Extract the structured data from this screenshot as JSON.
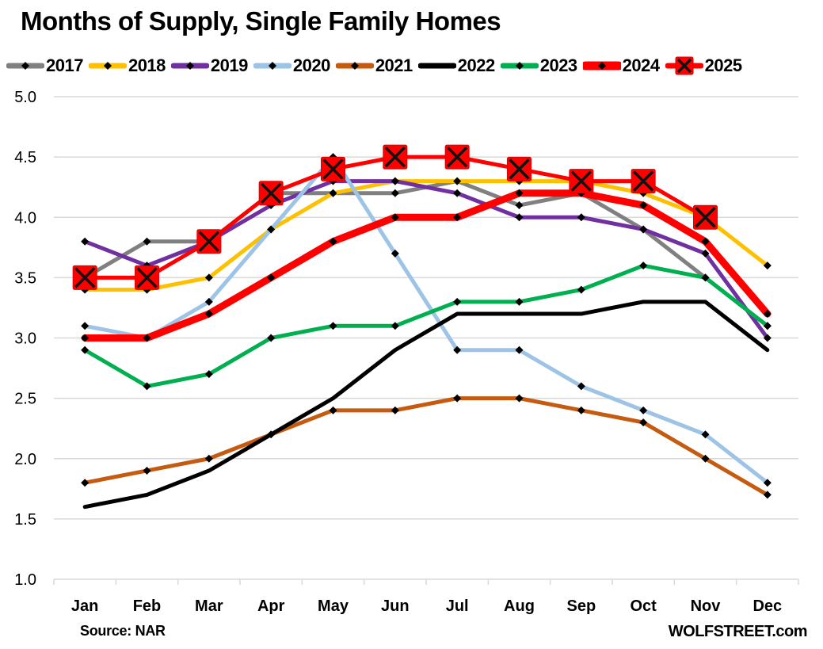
{
  "chart_data": {
    "type": "line",
    "title": "Months of Supply, Single Family Homes",
    "xlabel": "",
    "ylabel": "",
    "categories": [
      "Jan",
      "Feb",
      "Mar",
      "Apr",
      "May",
      "Jun",
      "Jul",
      "Aug",
      "Sep",
      "Oct",
      "Nov",
      "Dec"
    ],
    "yticks": [
      "1.0",
      "1.5",
      "2.0",
      "2.5",
      "3.0",
      "3.5",
      "4.0",
      "4.5",
      "5.0"
    ],
    "ylim": [
      1.0,
      5.0
    ],
    "grid": true,
    "legend_position": "top",
    "series": [
      {
        "name": "2017",
        "color": "#808080",
        "marker": "diamond",
        "values": [
          3.5,
          3.8,
          3.8,
          4.2,
          4.2,
          4.2,
          4.3,
          4.1,
          4.2,
          3.9,
          3.5,
          3.1
        ]
      },
      {
        "name": "2018",
        "color": "#FFC000",
        "marker": "diamond",
        "values": [
          3.4,
          3.4,
          3.5,
          3.9,
          4.2,
          4.3,
          4.3,
          4.3,
          4.3,
          4.2,
          4.0,
          3.6
        ]
      },
      {
        "name": "2019",
        "color": "#7030A0",
        "marker": "diamond",
        "values": [
          3.8,
          3.6,
          3.8,
          4.1,
          4.3,
          4.3,
          4.2,
          4.0,
          4.0,
          3.9,
          3.7,
          3.0
        ]
      },
      {
        "name": "2020",
        "color": "#9DC3E6",
        "marker": "diamond",
        "values": [
          3.1,
          3.0,
          3.3,
          3.9,
          4.5,
          3.7,
          2.9,
          2.9,
          2.6,
          2.4,
          2.2,
          1.8
        ]
      },
      {
        "name": "2021",
        "color": "#C55A11",
        "marker": "diamond",
        "values": [
          1.8,
          1.9,
          2.0,
          2.2,
          2.4,
          2.4,
          2.5,
          2.5,
          2.4,
          2.3,
          2.0,
          1.7
        ]
      },
      {
        "name": "2022",
        "color": "#000000",
        "marker": "none",
        "values": [
          1.6,
          1.7,
          1.9,
          2.2,
          2.5,
          2.9,
          3.2,
          3.2,
          3.2,
          3.3,
          3.3,
          2.9
        ]
      },
      {
        "name": "2023",
        "color": "#00B050",
        "marker": "diamond",
        "values": [
          2.9,
          2.6,
          2.7,
          3.0,
          3.1,
          3.1,
          3.3,
          3.3,
          3.4,
          3.6,
          3.5,
          3.1
        ]
      },
      {
        "name": "2024",
        "color": "#FF0000",
        "marker": "diamond",
        "values": [
          3.0,
          3.0,
          3.2,
          3.5,
          3.8,
          4.0,
          4.0,
          4.2,
          4.2,
          4.1,
          3.8,
          3.2
        ]
      },
      {
        "name": "2025",
        "color": "#FF0000",
        "marker": "x-square",
        "values": [
          3.5,
          3.5,
          3.8,
          4.2,
          4.4,
          4.5,
          4.5,
          4.4,
          4.3,
          4.3,
          4.0,
          null
        ]
      }
    ],
    "annotations": [
      "Source: NAR",
      "WOLFSTREET.com"
    ]
  },
  "footer": {
    "source": "Source: NAR",
    "watermark": "WOLFSTREET.com"
  }
}
